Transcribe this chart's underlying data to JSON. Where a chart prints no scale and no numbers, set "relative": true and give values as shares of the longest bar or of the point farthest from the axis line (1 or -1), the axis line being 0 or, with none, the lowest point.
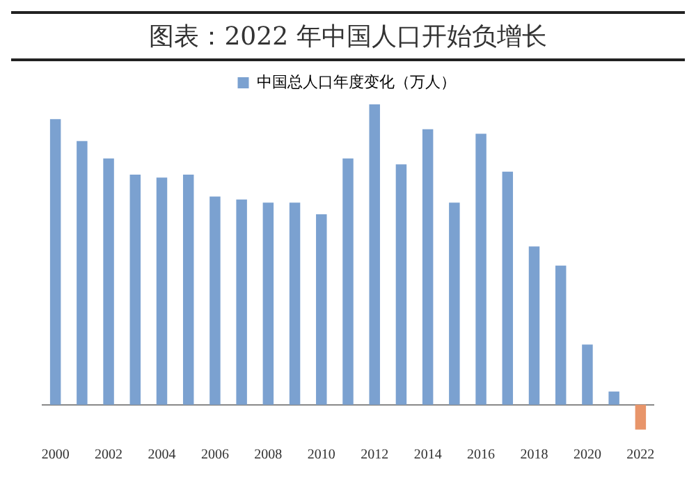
{
  "chart_data": {
    "type": "bar",
    "title": "图表：2022 年中国人口开始负增长",
    "relative": true,
    "legend": "top",
    "categories": [
      "2000",
      null,
      "2002",
      null,
      "2004",
      null,
      "2006",
      null,
      "2008",
      null,
      "2010",
      null,
      "2012",
      null,
      "2014",
      null,
      "2016",
      null,
      "2018",
      null,
      "2020",
      null,
      "2022"
    ],
    "series": [
      {
        "name": "中国总人口年度变化（万人）",
        "color": "#7ba1d0",
        "colors": [
          "#7ba1d0",
          "#7ba1d0",
          "#7ba1d0",
          "#7ba1d0",
          "#7ba1d0",
          "#7ba1d0",
          "#7ba1d0",
          "#7ba1d0",
          "#7ba1d0",
          "#7ba1d0",
          "#7ba1d0",
          "#7ba1d0",
          "#7ba1d0",
          "#7ba1d0",
          "#7ba1d0",
          "#7ba1d0",
          "#7ba1d0",
          "#7ba1d0",
          "#7ba1d0",
          "#7ba1d0",
          "#7ba1d0",
          "#7ba1d0",
          "#e8956a"
        ],
        "values": [
          0.951,
          0.878,
          0.82,
          0.766,
          0.756,
          0.766,
          0.693,
          0.683,
          0.673,
          0.673,
          0.634,
          0.82,
          1,
          0.8,
          0.917,
          0.673,
          0.902,
          0.776,
          0.527,
          0.463,
          0.2,
          0.044,
          -0.083
        ]
      }
    ]
  }
}
